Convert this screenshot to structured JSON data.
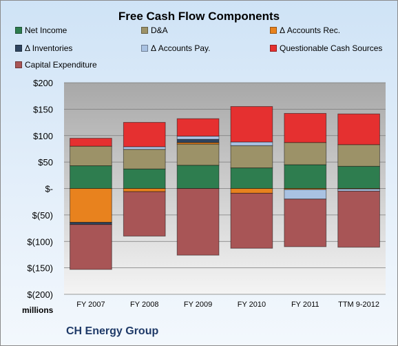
{
  "chart_data": {
    "type": "bar",
    "stacked": true,
    "title": "Free Cash Flow Components",
    "categories": [
      "FY 2007",
      "FY 2008",
      "FY 2009",
      "FY 2010",
      "FY 2011",
      "TTM 9-2012"
    ],
    "ylim": [
      -200,
      200
    ],
    "yticks": [
      200,
      150,
      100,
      50,
      0,
      -50,
      -100,
      -150,
      -200
    ],
    "ytick_labels": [
      "$200",
      "$150",
      "$100",
      "$50",
      "$-",
      "$(50)",
      "$(100)",
      "$(150)",
      "$(200)"
    ],
    "units_label": "millions",
    "grid": true,
    "legend_position": "top",
    "series": [
      {
        "name": "Net Income",
        "color": "#2e7d4f",
        "values": [
          43,
          37,
          44,
          39,
          45,
          42
        ]
      },
      {
        "name": "D&A",
        "color": "#9c9268",
        "values": [
          37,
          37,
          40,
          42,
          42,
          41
        ]
      },
      {
        "name": "Δ Accounts Rec.",
        "color": "#e8821e",
        "values": [
          -64,
          -6,
          3,
          -9,
          -2,
          -1
        ]
      },
      {
        "name": "Δ Inventories",
        "color": "#2f4560",
        "values": [
          -4,
          0,
          6,
          0,
          0,
          0
        ]
      },
      {
        "name": "Δ Accounts Pay.",
        "color": "#a9c2e2",
        "values": [
          0,
          5,
          6,
          7,
          -18,
          -4
        ]
      },
      {
        "name": "Questionable Cash Sources",
        "color": "#e53030",
        "values": [
          15,
          46,
          33,
          67,
          55,
          58
        ]
      },
      {
        "name": "Capital Expenditure",
        "color": "#a85556",
        "values": [
          -85,
          -84,
          -126,
          -104,
          -90,
          -106
        ]
      }
    ]
  },
  "footer": {
    "company": "CH Energy Group"
  }
}
